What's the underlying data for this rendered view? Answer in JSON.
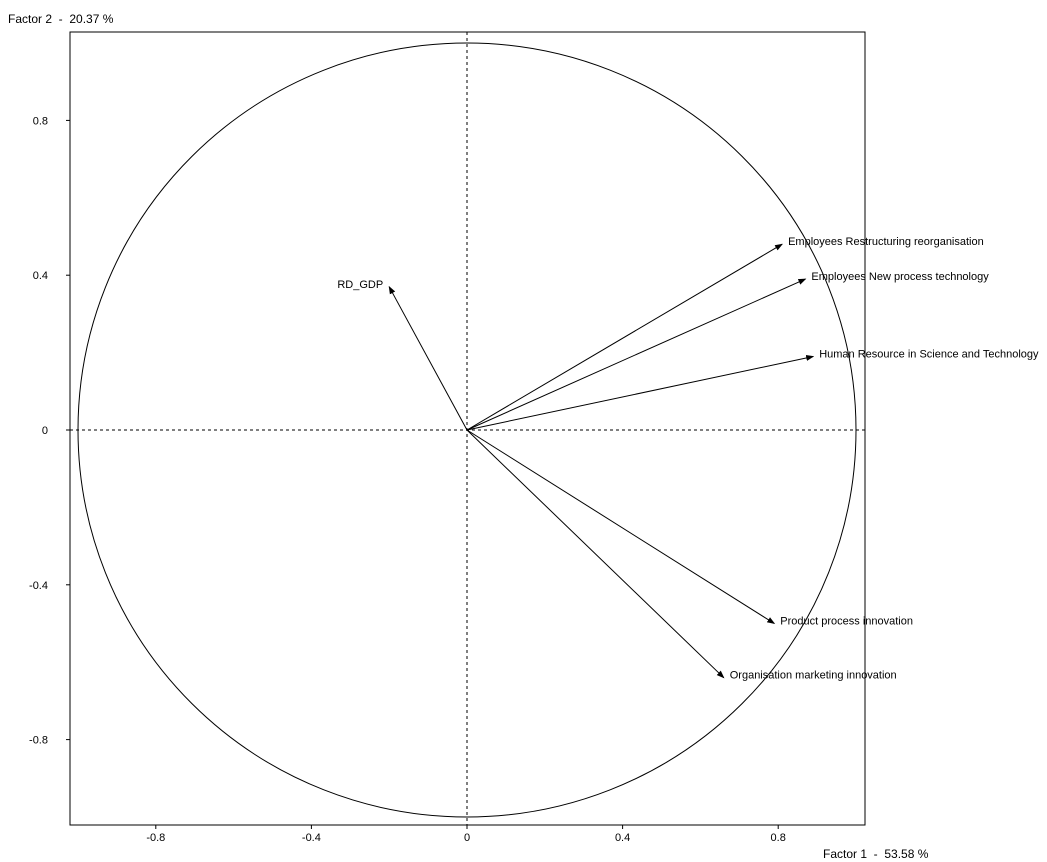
{
  "chart_data": {
    "type": "scatter",
    "subtype": "correlation-circle",
    "x_axis_title": "Factor 1  -  53.58 %",
    "y_axis_title": "Factor 2  -  20.37 %",
    "xlim": [
      -1.02,
      1.02
    ],
    "ylim": [
      -1.02,
      1.02
    ],
    "x_ticks": [
      {
        "value": -0.8,
        "label": "-0.8"
      },
      {
        "value": -0.4,
        "label": "-0.4"
      },
      {
        "value": 0,
        "label": "0"
      },
      {
        "value": 0.4,
        "label": "0.4"
      },
      {
        "value": 0.8,
        "label": "0.8"
      }
    ],
    "y_ticks": [
      {
        "value": 0.8,
        "label": "0.8"
      },
      {
        "value": 0.4,
        "label": "0.4"
      },
      {
        "value": 0,
        "label": "0"
      },
      {
        "value": -0.4,
        "label": "-0.4"
      },
      {
        "value": -0.8,
        "label": "-0.8"
      }
    ],
    "unit_circle": true,
    "zero_lines": "dashed",
    "grid": false,
    "vectors": [
      {
        "label": "Employees Restructuring reorganisation",
        "x": 0.81,
        "y": 0.48
      },
      {
        "label": "Employees New process technology",
        "x": 0.87,
        "y": 0.39
      },
      {
        "label": "Human Resource in Science and Technology",
        "x": 0.89,
        "y": 0.19
      },
      {
        "label": "RD_GDP",
        "x": -0.2,
        "y": 0.37
      },
      {
        "label": "Product process innovation",
        "x": 0.79,
        "y": -0.5
      },
      {
        "label": "Organisation marketing innovation",
        "x": 0.66,
        "y": -0.64
      }
    ],
    "colors": {
      "line": "#000000",
      "background": "#ffffff"
    }
  }
}
